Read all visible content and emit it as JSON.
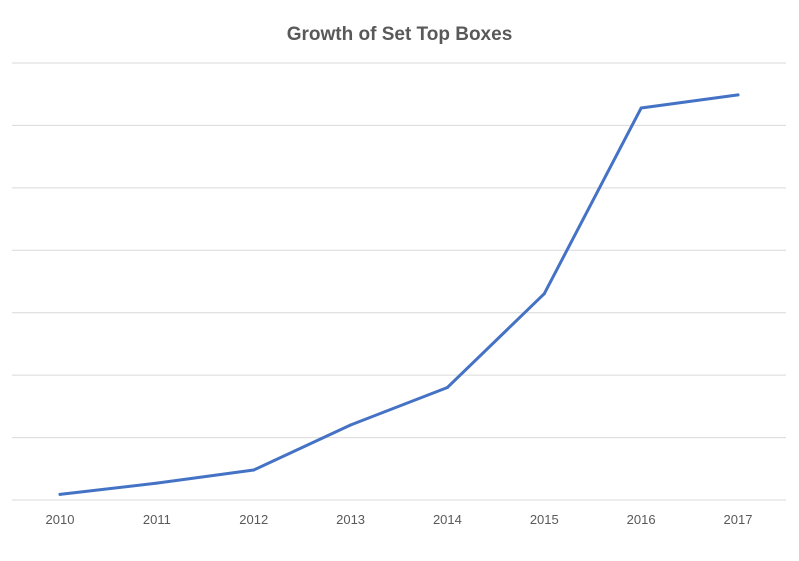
{
  "chart_data": {
    "type": "line",
    "title": "Growth of Set Top Boxes",
    "xlabel": "",
    "ylabel": "",
    "categories": [
      "2010",
      "2011",
      "2012",
      "2013",
      "2014",
      "2015",
      "2016",
      "2017"
    ],
    "series": [
      {
        "values": [
          0.3,
          0.9,
          1.6,
          4.0,
          6.0,
          11.0,
          20.9,
          21.6
        ]
      }
    ],
    "ylim": [
      0,
      23.3
    ],
    "grid": true,
    "legend": "none",
    "colors": {
      "line": "#4472c4",
      "grid": "#d9d9d9",
      "text": "#595959"
    }
  }
}
